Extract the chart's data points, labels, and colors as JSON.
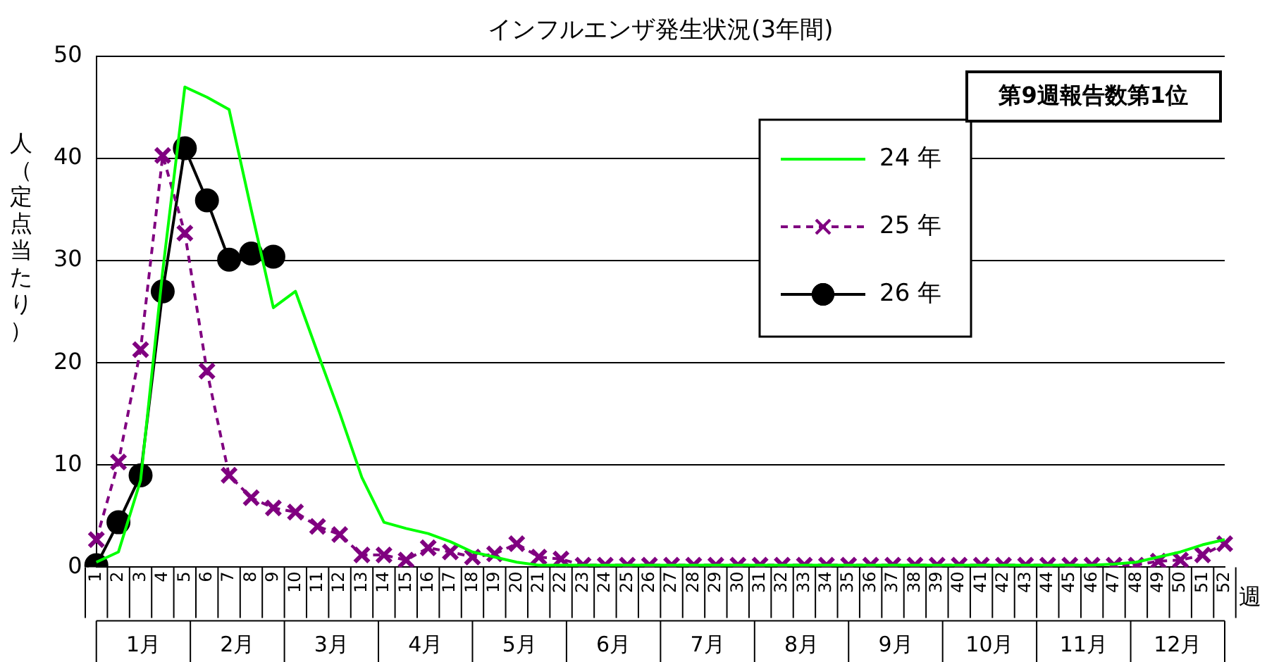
{
  "chart_data": {
    "type": "line",
    "title": "インフルエンザ発生状況(3年間)",
    "xlabel": "週",
    "ylabel": "人（定点当たり）",
    "categories": [
      "1",
      "2",
      "3",
      "4",
      "5",
      "6",
      "7",
      "8",
      "9",
      "10",
      "11",
      "12",
      "13",
      "14",
      "15",
      "16",
      "17",
      "18",
      "19",
      "20",
      "21",
      "22",
      "23",
      "24",
      "25",
      "26",
      "27",
      "28",
      "29",
      "30",
      "31",
      "32",
      "33",
      "34",
      "35",
      "36",
      "37",
      "38",
      "39",
      "40",
      "41",
      "42",
      "43",
      "44",
      "45",
      "46",
      "47",
      "48",
      "49",
      "50",
      "51",
      "52"
    ],
    "series": [
      {
        "name": "24 年",
        "color": "#00ff00",
        "marker": "none",
        "line_style": "solid",
        "values": [
          0.5,
          1.5,
          8.5,
          29,
          47,
          46,
          44.8,
          35,
          25.4,
          27,
          21,
          15.1,
          8.8,
          4.4,
          3.8,
          3.3,
          2.5,
          1.5,
          1,
          0.5,
          0.2,
          0.2,
          0.2,
          0.2,
          0.2,
          0.2,
          0.2,
          0.2,
          0.2,
          0.2,
          0.2,
          0.2,
          0.2,
          0.2,
          0.2,
          0.2,
          0.2,
          0.2,
          0.2,
          0.2,
          0.2,
          0.2,
          0.2,
          0.2,
          0.2,
          0.2,
          0.3,
          0.5,
          1,
          1.5,
          2.2,
          2.7
        ]
      },
      {
        "name": "25 年",
        "color": "#800080",
        "marker": "cross",
        "line_style": "dashed",
        "values": [
          2.7,
          10.3,
          21.3,
          40.3,
          32.7,
          19.2,
          9,
          6.8,
          5.8,
          5.4,
          4,
          3.2,
          1.2,
          1.2,
          0.7,
          1.9,
          1.5,
          1,
          1.3,
          2.3,
          1,
          0.8,
          0.2,
          0.2,
          0.2,
          0.2,
          0.2,
          0.2,
          0.2,
          0.2,
          0.2,
          0.2,
          0.2,
          0.2,
          0.2,
          0.2,
          0.2,
          0.2,
          0.2,
          0.2,
          0.2,
          0.2,
          0.2,
          0.2,
          0.2,
          0.2,
          0.2,
          0.2,
          0.6,
          0.7,
          1.2,
          2.3
        ]
      },
      {
        "name": "26 年",
        "color": "#000000",
        "marker": "circle",
        "line_style": "solid",
        "values": [
          0.2,
          4.4,
          9,
          27,
          41,
          35.9,
          30.1,
          30.7,
          30.4,
          null,
          null,
          null,
          null,
          null,
          null,
          null,
          null,
          null,
          null,
          null,
          null,
          null,
          null,
          null,
          null,
          null,
          null,
          null,
          null,
          null,
          null,
          null,
          null,
          null,
          null,
          null,
          null,
          null,
          null,
          null,
          null,
          null,
          null,
          null,
          null,
          null,
          null,
          null,
          null,
          null,
          null,
          null
        ]
      }
    ],
    "ylim": [
      0,
      50
    ],
    "yticks": [
      0,
      10,
      20,
      30,
      40,
      50
    ],
    "grid": "y",
    "legend": "top right",
    "annotations": [
      "第9週報告数第1位",
      "1月",
      "2月",
      "3月",
      "4月",
      "5月",
      "6月",
      "7月",
      "8月",
      "9月",
      "10月",
      "11月",
      "12月"
    ]
  }
}
